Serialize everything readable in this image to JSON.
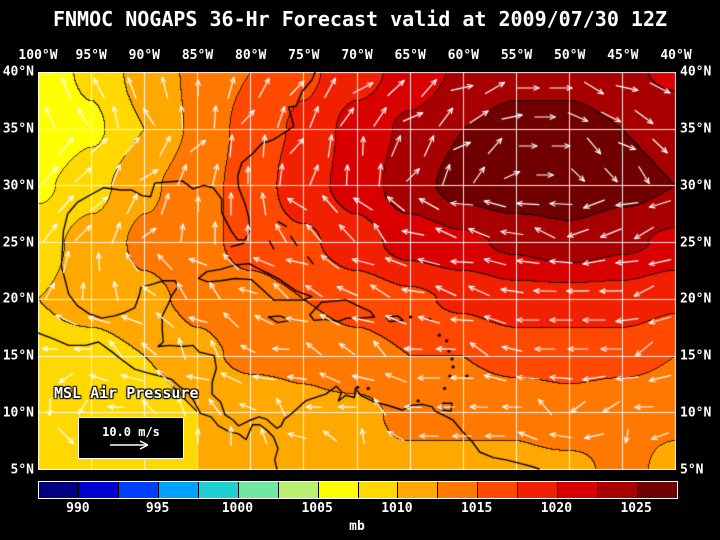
{
  "title": "FNMOC NOGAPS 36-Hr Forecast valid at 2009/07/30 12Z",
  "map": {
    "lon_labels": [
      "100°W",
      "95°W",
      "90°W",
      "85°W",
      "80°W",
      "75°W",
      "70°W",
      "65°W",
      "60°W",
      "55°W",
      "50°W",
      "45°W",
      "40°W"
    ],
    "lat_labels": [
      "40°N",
      "35°N",
      "30°N",
      "25°N",
      "20°N",
      "15°N",
      "10°N",
      "5°N"
    ],
    "field_label": "MSL Air Pressure",
    "wind_legend_label": "10.0 m/s"
  },
  "colorbar": {
    "unit": "mb",
    "min": 987.5,
    "step": 2.5,
    "tick_labels": [
      "990",
      "995",
      "1000",
      "1005",
      "1010",
      "1015",
      "1020",
      "1025"
    ],
    "colors": [
      "#000080",
      "#0000d0",
      "#0040ff",
      "#00a0ff",
      "#20d0d0",
      "#70e8a0",
      "#b8f070",
      "#ffff00",
      "#ffd800",
      "#ffa800",
      "#ff7800",
      "#ff4800",
      "#f02000",
      "#d80000",
      "#a80000",
      "#700000"
    ]
  },
  "chart_data": {
    "type": "heatmap",
    "title": "FNMOC NOGAPS 36-Hr Forecast valid at 2009/07/30 12Z",
    "model": "FNMOC NOGAPS",
    "forecast_hours": 36,
    "valid_time": "2009/07/30 12Z",
    "variable": "MSL Air Pressure",
    "units": "mb",
    "lon_deg_west": [
      100,
      95,
      90,
      85,
      80,
      75,
      70,
      65,
      60,
      55,
      50,
      45,
      40
    ],
    "lat_deg_north": [
      40,
      35,
      30,
      25,
      20,
      15,
      10,
      5
    ],
    "pressure_mb": [
      [
        1006,
        1008,
        1011,
        1013,
        1015,
        1017,
        1019,
        1021,
        1023,
        1024,
        1024,
        1023,
        1022
      ],
      [
        1005,
        1007,
        1010,
        1013,
        1016,
        1018,
        1021,
        1023,
        1025,
        1026,
        1026,
        1025,
        1024
      ],
      [
        1007,
        1009,
        1012,
        1014,
        1016,
        1019,
        1021,
        1024,
        1026,
        1027,
        1027,
        1026,
        1025
      ],
      [
        1009,
        1011,
        1013,
        1014,
        1016,
        1017,
        1019,
        1021,
        1022,
        1023,
        1024,
        1023,
        1022
      ],
      [
        1010,
        1011,
        1012,
        1013,
        1014,
        1015,
        1016,
        1017,
        1018,
        1019,
        1019,
        1019,
        1018
      ],
      [
        1009,
        1009,
        1010,
        1012,
        1013,
        1013,
        1014,
        1015,
        1015,
        1016,
        1016,
        1016,
        1015
      ],
      [
        1009,
        1008,
        1008,
        1010,
        1011,
        1012,
        1012,
        1013,
        1013,
        1013,
        1014,
        1013,
        1013
      ],
      [
        1010,
        1009,
        1009,
        1010,
        1011,
        1011,
        1012,
        1012,
        1012,
        1012,
        1012,
        1013,
        1012
      ]
    ],
    "colorbar_range_mb": [
      987.5,
      1027.5
    ],
    "wind_reference_ms": 10.0,
    "wind_flow": "clockwise circulation around subtropical high near 50W 32N, easterly trades south of 20N",
    "high_center": {
      "lon_deg_west": 51,
      "lat_deg_north": 32,
      "pressure_mb": 1027
    }
  }
}
